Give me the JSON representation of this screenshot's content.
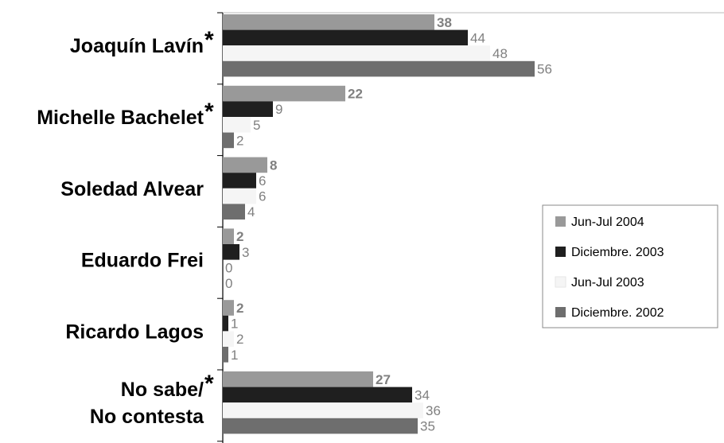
{
  "chart_data": {
    "type": "bar",
    "orientation": "horizontal",
    "categories": [
      "Joaquín Lavín",
      "Michelle Bachelet",
      "Soledad Alvear",
      "Eduardo Frei",
      "Ricardo Lagos",
      "No sabe/\nNo contesta"
    ],
    "category_lines": [
      [
        "Joaquín Lavín"
      ],
      [
        "Michelle Bachelet"
      ],
      [
        "Soledad Alvear"
      ],
      [
        "Eduardo Frei"
      ],
      [
        "Ricardo Lagos"
      ],
      [
        "No sabe/",
        "No contesta"
      ]
    ],
    "category_asterisk": [
      true,
      true,
      false,
      false,
      false,
      true
    ],
    "asterisk_text": "*",
    "series": [
      {
        "name": "Jun-Jul 2004",
        "values": [
          38,
          22,
          8,
          2,
          2,
          27
        ],
        "color": "#999999",
        "label_color": "#808080",
        "label_bold": true
      },
      {
        "name": "Diciembre. 2003",
        "values": [
          44,
          9,
          6,
          3,
          1,
          34
        ],
        "color": "#1f1f1f",
        "label_color": "#808080",
        "label_bold": false
      },
      {
        "name": "Jun-Jul 2003",
        "values": [
          48,
          5,
          6,
          0,
          2,
          36
        ],
        "color": "#f5f5f5",
        "label_color": "#808080",
        "label_bold": false
      },
      {
        "name": "Diciembre. 2002",
        "values": [
          56,
          2,
          4,
          0,
          1,
          35
        ],
        "color": "#6e6e6e",
        "label_color": "#808080",
        "label_bold": false
      }
    ],
    "xlim": [
      0,
      75
    ],
    "grid": false,
    "legend_position": "right",
    "title": "",
    "xlabel": "",
    "ylabel": ""
  }
}
